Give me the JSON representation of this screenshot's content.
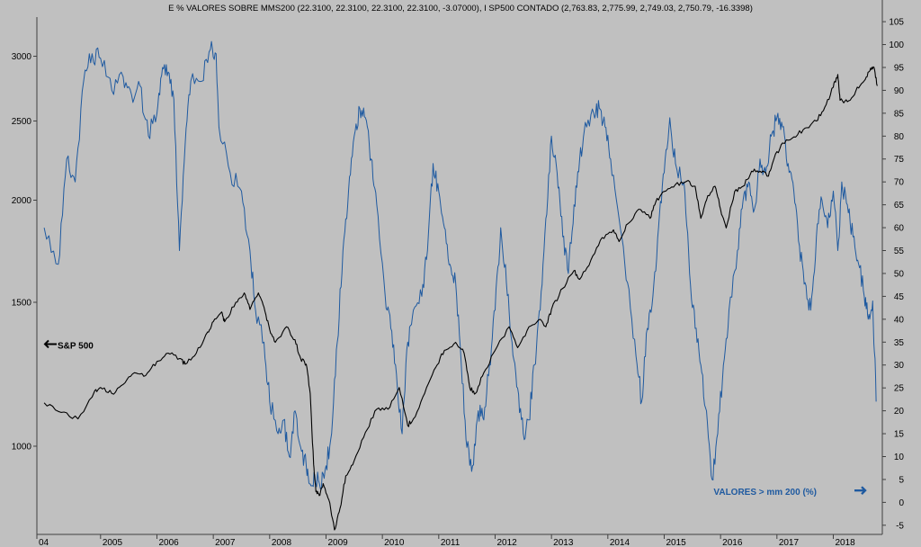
{
  "chart_data": {
    "type": "line",
    "title": "E % VALORES SOBRE MMS200 (22.3100, 22.3100, 22.3100, 22.3100, -3.07000), I SP500 CONTADO (2,763.83, 2,775.99, 2,749.03, 2,750.79, -16.3398)",
    "x_ticks": [
      "04",
      "2005",
      "2006",
      "2007",
      "2008",
      "2009",
      "2010",
      "2011",
      "2012",
      "2013",
      "2014",
      "2015",
      "2016",
      "2017",
      "2018"
    ],
    "left_axis": {
      "scale": "log",
      "ticks": [
        "1000",
        "1500",
        "2000",
        "2500",
        "3000"
      ],
      "range": [
        780,
        3350
      ]
    },
    "right_axis": {
      "ticks": [
        "-5",
        "0",
        "5",
        "10",
        "15",
        "20",
        "25",
        "30",
        "35",
        "40",
        "45",
        "50",
        "55",
        "60",
        "65",
        "70",
        "75",
        "80",
        "85",
        "90",
        "95",
        "100",
        "105"
      ],
      "range": [
        -7,
        106
      ]
    },
    "series": [
      {
        "name": "S&P 500",
        "axis": "left",
        "color": "#000000",
        "points": [
          [
            2004.0,
            1130
          ],
          [
            2004.3,
            1100
          ],
          [
            2004.6,
            1080
          ],
          [
            2004.9,
            1170
          ],
          [
            2005.0,
            1180
          ],
          [
            2005.2,
            1160
          ],
          [
            2005.4,
            1190
          ],
          [
            2005.6,
            1230
          ],
          [
            2005.8,
            1220
          ],
          [
            2006.0,
            1270
          ],
          [
            2006.2,
            1300
          ],
          [
            2006.4,
            1280
          ],
          [
            2006.5,
            1260
          ],
          [
            2006.7,
            1300
          ],
          [
            2006.9,
            1380
          ],
          [
            2007.0,
            1420
          ],
          [
            2007.15,
            1460
          ],
          [
            2007.2,
            1420
          ],
          [
            2007.4,
            1500
          ],
          [
            2007.55,
            1540
          ],
          [
            2007.65,
            1470
          ],
          [
            2007.8,
            1540
          ],
          [
            2007.9,
            1480
          ],
          [
            2008.0,
            1390
          ],
          [
            2008.1,
            1340
          ],
          [
            2008.3,
            1400
          ],
          [
            2008.45,
            1350
          ],
          [
            2008.55,
            1280
          ],
          [
            2008.65,
            1260
          ],
          [
            2008.72,
            1160
          ],
          [
            2008.78,
            950
          ],
          [
            2008.82,
            880
          ],
          [
            2008.88,
            870
          ],
          [
            2008.95,
            900
          ],
          [
            2009.05,
            860
          ],
          [
            2009.15,
            790
          ],
          [
            2009.25,
            840
          ],
          [
            2009.35,
            920
          ],
          [
            2009.5,
            960
          ],
          [
            2009.7,
            1040
          ],
          [
            2009.9,
            1110
          ],
          [
            2010.1,
            1110
          ],
          [
            2010.3,
            1180
          ],
          [
            2010.45,
            1060
          ],
          [
            2010.55,
            1080
          ],
          [
            2010.75,
            1160
          ],
          [
            2010.95,
            1250
          ],
          [
            2011.1,
            1310
          ],
          [
            2011.3,
            1340
          ],
          [
            2011.45,
            1300
          ],
          [
            2011.55,
            1180
          ],
          [
            2011.65,
            1160
          ],
          [
            2011.8,
            1230
          ],
          [
            2012.0,
            1310
          ],
          [
            2012.25,
            1400
          ],
          [
            2012.4,
            1320
          ],
          [
            2012.6,
            1400
          ],
          [
            2012.8,
            1430
          ],
          [
            2012.9,
            1400
          ],
          [
            2013.0,
            1470
          ],
          [
            2013.2,
            1560
          ],
          [
            2013.4,
            1640
          ],
          [
            2013.5,
            1600
          ],
          [
            2013.7,
            1690
          ],
          [
            2013.9,
            1800
          ],
          [
            2014.1,
            1840
          ],
          [
            2014.2,
            1780
          ],
          [
            2014.35,
            1870
          ],
          [
            2014.55,
            1950
          ],
          [
            2014.75,
            1900
          ],
          [
            2014.85,
            1990
          ],
          [
            2015.0,
            2050
          ],
          [
            2015.2,
            2090
          ],
          [
            2015.4,
            2110
          ],
          [
            2015.55,
            2080
          ],
          [
            2015.65,
            1900
          ],
          [
            2015.75,
            2000
          ],
          [
            2015.9,
            2080
          ],
          [
            2016.0,
            1950
          ],
          [
            2016.1,
            1850
          ],
          [
            2016.25,
            2050
          ],
          [
            2016.4,
            2080
          ],
          [
            2016.55,
            2170
          ],
          [
            2016.7,
            2170
          ],
          [
            2016.85,
            2140
          ],
          [
            2016.95,
            2250
          ],
          [
            2017.1,
            2350
          ],
          [
            2017.3,
            2390
          ],
          [
            2017.5,
            2450
          ],
          [
            2017.7,
            2500
          ],
          [
            2017.85,
            2600
          ],
          [
            2018.0,
            2750
          ],
          [
            2018.08,
            2850
          ],
          [
            2018.12,
            2650
          ],
          [
            2018.25,
            2640
          ],
          [
            2018.4,
            2720
          ],
          [
            2018.55,
            2800
          ],
          [
            2018.65,
            2880
          ],
          [
            2018.72,
            2910
          ],
          [
            2018.78,
            2760
          ]
        ]
      },
      {
        "name": "VALORES > mm 200 (%)",
        "axis": "right",
        "color": "#1f5aa0",
        "points": [
          [
            2004.0,
            60
          ],
          [
            2004.25,
            52
          ],
          [
            2004.4,
            75
          ],
          [
            2004.55,
            70
          ],
          [
            2004.7,
            92
          ],
          [
            2004.85,
            98
          ],
          [
            2005.0,
            97
          ],
          [
            2005.2,
            90
          ],
          [
            2005.4,
            93
          ],
          [
            2005.55,
            89
          ],
          [
            2005.7,
            91
          ],
          [
            2005.85,
            80
          ],
          [
            2006.0,
            85
          ],
          [
            2006.1,
            95
          ],
          [
            2006.2,
            94
          ],
          [
            2006.3,
            88
          ],
          [
            2006.4,
            55
          ],
          [
            2006.5,
            78
          ],
          [
            2006.6,
            92
          ],
          [
            2006.8,
            92
          ],
          [
            2006.95,
            99
          ],
          [
            2007.05,
            98
          ],
          [
            2007.1,
            82
          ],
          [
            2007.3,
            72
          ],
          [
            2007.5,
            68
          ],
          [
            2007.65,
            55
          ],
          [
            2007.75,
            42
          ],
          [
            2007.9,
            35
          ],
          [
            2008.0,
            22
          ],
          [
            2008.15,
            15
          ],
          [
            2008.25,
            18
          ],
          [
            2008.35,
            10
          ],
          [
            2008.45,
            20
          ],
          [
            2008.55,
            12
          ],
          [
            2008.65,
            8
          ],
          [
            2008.72,
            4
          ],
          [
            2008.8,
            6
          ],
          [
            2008.9,
            3
          ],
          [
            2009.0,
            8
          ],
          [
            2009.1,
            15
          ],
          [
            2009.2,
            35
          ],
          [
            2009.3,
            55
          ],
          [
            2009.4,
            68
          ],
          [
            2009.5,
            80
          ],
          [
            2009.6,
            86
          ],
          [
            2009.7,
            84
          ],
          [
            2009.8,
            75
          ],
          [
            2009.9,
            65
          ],
          [
            2010.05,
            45
          ],
          [
            2010.15,
            38
          ],
          [
            2010.25,
            28
          ],
          [
            2010.35,
            15
          ],
          [
            2010.45,
            35
          ],
          [
            2010.55,
            42
          ],
          [
            2010.7,
            45
          ],
          [
            2010.8,
            55
          ],
          [
            2010.9,
            74
          ],
          [
            2011.0,
            68
          ],
          [
            2011.1,
            60
          ],
          [
            2011.2,
            52
          ],
          [
            2011.3,
            48
          ],
          [
            2011.4,
            30
          ],
          [
            2011.5,
            12
          ],
          [
            2011.6,
            8
          ],
          [
            2011.7,
            20
          ],
          [
            2011.8,
            18
          ],
          [
            2011.9,
            30
          ],
          [
            2012.0,
            42
          ],
          [
            2012.1,
            60
          ],
          [
            2012.2,
            48
          ],
          [
            2012.3,
            35
          ],
          [
            2012.4,
            25
          ],
          [
            2012.5,
            15
          ],
          [
            2012.6,
            18
          ],
          [
            2012.7,
            30
          ],
          [
            2012.8,
            42
          ],
          [
            2012.9,
            62
          ],
          [
            2013.0,
            80
          ],
          [
            2013.1,
            72
          ],
          [
            2013.2,
            58
          ],
          [
            2013.3,
            50
          ],
          [
            2013.4,
            65
          ],
          [
            2013.5,
            75
          ],
          [
            2013.6,
            83
          ],
          [
            2013.75,
            85
          ],
          [
            2013.85,
            86
          ],
          [
            2013.95,
            82
          ],
          [
            2014.05,
            75
          ],
          [
            2014.2,
            62
          ],
          [
            2014.35,
            48
          ],
          [
            2014.5,
            32
          ],
          [
            2014.6,
            22
          ],
          [
            2014.7,
            38
          ],
          [
            2014.8,
            45
          ],
          [
            2014.9,
            60
          ],
          [
            2015.0,
            72
          ],
          [
            2015.1,
            84
          ],
          [
            2015.2,
            74
          ],
          [
            2015.35,
            70
          ],
          [
            2015.45,
            50
          ],
          [
            2015.55,
            38
          ],
          [
            2015.65,
            30
          ],
          [
            2015.75,
            20
          ],
          [
            2015.85,
            5
          ],
          [
            2015.95,
            15
          ],
          [
            2016.05,
            30
          ],
          [
            2016.15,
            42
          ],
          [
            2016.3,
            55
          ],
          [
            2016.4,
            66
          ],
          [
            2016.5,
            70
          ],
          [
            2016.6,
            64
          ],
          [
            2016.7,
            75
          ],
          [
            2016.8,
            72
          ],
          [
            2016.9,
            80
          ],
          [
            2017.0,
            84
          ],
          [
            2017.1,
            82
          ],
          [
            2017.2,
            74
          ],
          [
            2017.3,
            68
          ],
          [
            2017.4,
            56
          ],
          [
            2017.5,
            48
          ],
          [
            2017.6,
            42
          ],
          [
            2017.7,
            58
          ],
          [
            2017.8,
            66
          ],
          [
            2017.9,
            60
          ],
          [
            2018.0,
            68
          ],
          [
            2018.08,
            55
          ],
          [
            2018.15,
            70
          ],
          [
            2018.25,
            65
          ],
          [
            2018.35,
            58
          ],
          [
            2018.45,
            52
          ],
          [
            2018.55,
            45
          ],
          [
            2018.62,
            40
          ],
          [
            2018.7,
            44
          ],
          [
            2018.76,
            22
          ]
        ]
      }
    ],
    "annotations": [
      {
        "text": "S&P 500",
        "series": "S&P 500",
        "color": "#000000"
      },
      {
        "text": "VALORES > mm 200 (%)",
        "series": "VALORES > mm 200 (%)",
        "color": "#1f5aa0"
      }
    ],
    "grid": false
  }
}
